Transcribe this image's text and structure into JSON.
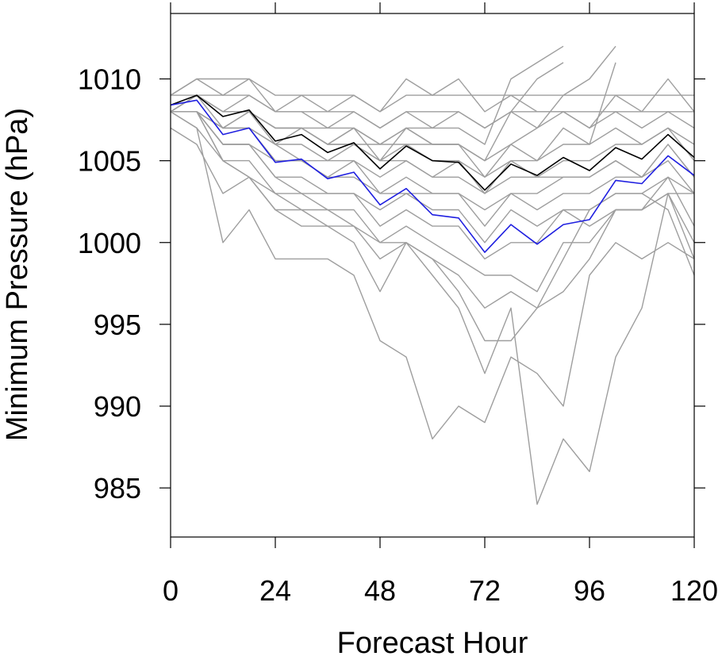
{
  "chart_data": {
    "type": "line",
    "title": "",
    "xlabel": "Forecast Hour",
    "ylabel": "Minimum Pressure (hPa)",
    "xlim": [
      0,
      120
    ],
    "ylim": [
      982,
      1014
    ],
    "xticks": [
      0,
      24,
      48,
      72,
      96,
      120
    ],
    "yticks": [
      985,
      990,
      995,
      1000,
      1005,
      1010
    ],
    "grid": false,
    "legend": "none",
    "colors": {
      "members": "#9e9e9e",
      "black_series": "#000000",
      "blue_series": "#1f1fe0"
    },
    "x": [
      0,
      6,
      12,
      18,
      24,
      30,
      36,
      42,
      48,
      54,
      60,
      66,
      72,
      78,
      84,
      90,
      96,
      102,
      108,
      114,
      120
    ],
    "series": [
      {
        "values": [
          1008.4,
          1009.0,
          1007.7,
          1008.1,
          1006.2,
          1006.6,
          1005.5,
          1006.1,
          1004.5,
          1005.9,
          1005.0,
          1004.9,
          1003.2,
          1004.8,
          1004.1,
          1005.2,
          1004.4,
          1005.8,
          1005.1,
          1006.6,
          1005.2
        ],
        "color": "#000000"
      },
      {
        "values": [
          1008.4,
          1008.7,
          1006.6,
          1007.0,
          1004.9,
          1005.1,
          1003.9,
          1004.3,
          1002.3,
          1003.3,
          1001.7,
          1001.5,
          999.4,
          1001.1,
          999.9,
          1001.1,
          1001.4,
          1003.8,
          1003.6,
          1005.3,
          1004.1
        ],
        "color": "#1f1fe0"
      }
    ],
    "members": [
      [
        1009,
        1010,
        1010,
        1010,
        1009,
        1009,
        1009,
        1009,
        1008,
        1009,
        1009,
        1009,
        1009,
        1009,
        1009,
        1009,
        1009,
        1009,
        1009,
        1009,
        1009
      ],
      [
        1009,
        1009,
        1009,
        1009,
        1008,
        1009,
        1008,
        1009,
        1008,
        1010,
        1009,
        1010,
        1008,
        1009,
        1008,
        1008,
        1007,
        1009,
        1008,
        1010,
        1008
      ],
      [
        1009,
        1010,
        1009,
        1010,
        1008,
        1008,
        1007,
        1008,
        1007,
        1008,
        1008,
        1008,
        1007,
        1008,
        1007,
        1008,
        1007,
        1008,
        1007,
        1008,
        1007
      ],
      [
        1008,
        1009,
        1008,
        1009,
        1008,
        1008,
        1008,
        1008,
        1007,
        1008,
        1007,
        1008,
        1007,
        1008,
        1008,
        1008,
        1008,
        1008,
        1008,
        1008,
        1008
      ],
      [
        1008,
        1009,
        1008,
        1008,
        1007,
        1007,
        1007,
        1007,
        1006,
        1007,
        1007,
        1007,
        1006,
        1010,
        1011,
        1012,
        null,
        null,
        null,
        null,
        null
      ],
      [
        1008,
        1009,
        1008,
        1008,
        1007,
        1007,
        1006,
        1007,
        1006,
        1007,
        1006,
        1006,
        1005,
        1008,
        1010,
        1011,
        null,
        null,
        null,
        null,
        null
      ],
      [
        1008,
        1009,
        1008,
        1008,
        1007,
        1007,
        1006,
        1006,
        1005,
        1006,
        1006,
        1006,
        1005,
        1006,
        1007,
        1009,
        1010,
        1012,
        null,
        null,
        null
      ],
      [
        1008,
        1009,
        1007,
        1008,
        1006,
        1007,
        1006,
        1007,
        1005,
        1007,
        1006,
        1006,
        1004,
        1006,
        1005,
        1007,
        1006,
        1011,
        null,
        null,
        null
      ],
      [
        1008,
        1008,
        1007,
        1008,
        1007,
        1007,
        1006,
        1006,
        1006,
        1006,
        1005,
        1005,
        1004,
        1005,
        1005,
        1006,
        1006,
        1007,
        1006,
        1007,
        1006
      ],
      [
        1008,
        1008,
        1007,
        1007,
        1006,
        1006,
        1005,
        1006,
        1005,
        1005,
        1004,
        1005,
        1003,
        1005,
        1004,
        1005,
        1005,
        1006,
        1006,
        1007,
        1005
      ],
      [
        1008,
        1008,
        1007,
        1007,
        1006,
        1005,
        1005,
        1005,
        1004,
        1005,
        1004,
        1004,
        1003,
        1004,
        1004,
        1004,
        1004,
        1005,
        1004,
        1006,
        1004
      ],
      [
        1008,
        1008,
        1007,
        1007,
        1005,
        1005,
        1004,
        1005,
        1003,
        1004,
        1003,
        1003,
        1002,
        1003,
        1003,
        1004,
        1004,
        1005,
        1004,
        1006,
        1004
      ],
      [
        1008,
        1008,
        1006,
        1006,
        1005,
        1005,
        1004,
        1004,
        1003,
        1003,
        1003,
        1003,
        1001,
        1003,
        1002,
        1003,
        1003,
        1004,
        1004,
        1005,
        1003
      ],
      [
        1008,
        1008,
        1006,
        1006,
        1004,
        1004,
        1003,
        1003,
        1002,
        1003,
        1002,
        1002,
        1000,
        1002,
        1001,
        1002,
        1002,
        1003,
        1003,
        1004,
        1003
      ],
      [
        1008,
        1008,
        1006,
        1006,
        1004,
        1003,
        1003,
        1003,
        1001,
        1002,
        1001,
        1001,
        999,
        1000,
        1000,
        1002,
        1001,
        1002,
        1002,
        1004,
        1001
      ],
      [
        1008,
        1008,
        1005,
        1005,
        1003,
        1003,
        1002,
        1002,
        1000,
        1001,
        1000,
        999,
        998,
        998,
        997,
        1000,
        1000,
        1002,
        1002,
        1003,
        1000
      ],
      [
        1008,
        1008,
        1005,
        1004,
        1003,
        1002,
        1002,
        1001,
        1000,
        1000,
        999,
        998,
        996,
        997,
        996,
        997,
        999,
        1002,
        1002,
        1003,
        999
      ],
      [
        1008,
        1007,
        1005,
        1004,
        1002,
        1002,
        1001,
        1001,
        999,
        1000,
        999,
        997,
        994,
        994,
        996,
        999,
        1002,
        1003,
        1003,
        1002,
        998
      ],
      [
        1007,
        1006,
        1003,
        1004,
        1002,
        1001,
        1001,
        1000,
        997,
        1000,
        998,
        996,
        992,
        996,
        984,
        988,
        986,
        993,
        996,
        1003,
        1003
      ],
      [
        1008,
        1007,
        1000,
        1002,
        999,
        999,
        999,
        998,
        994,
        993,
        988,
        990,
        989,
        993,
        992,
        990,
        998,
        1000,
        999,
        1000,
        999
      ]
    ]
  }
}
